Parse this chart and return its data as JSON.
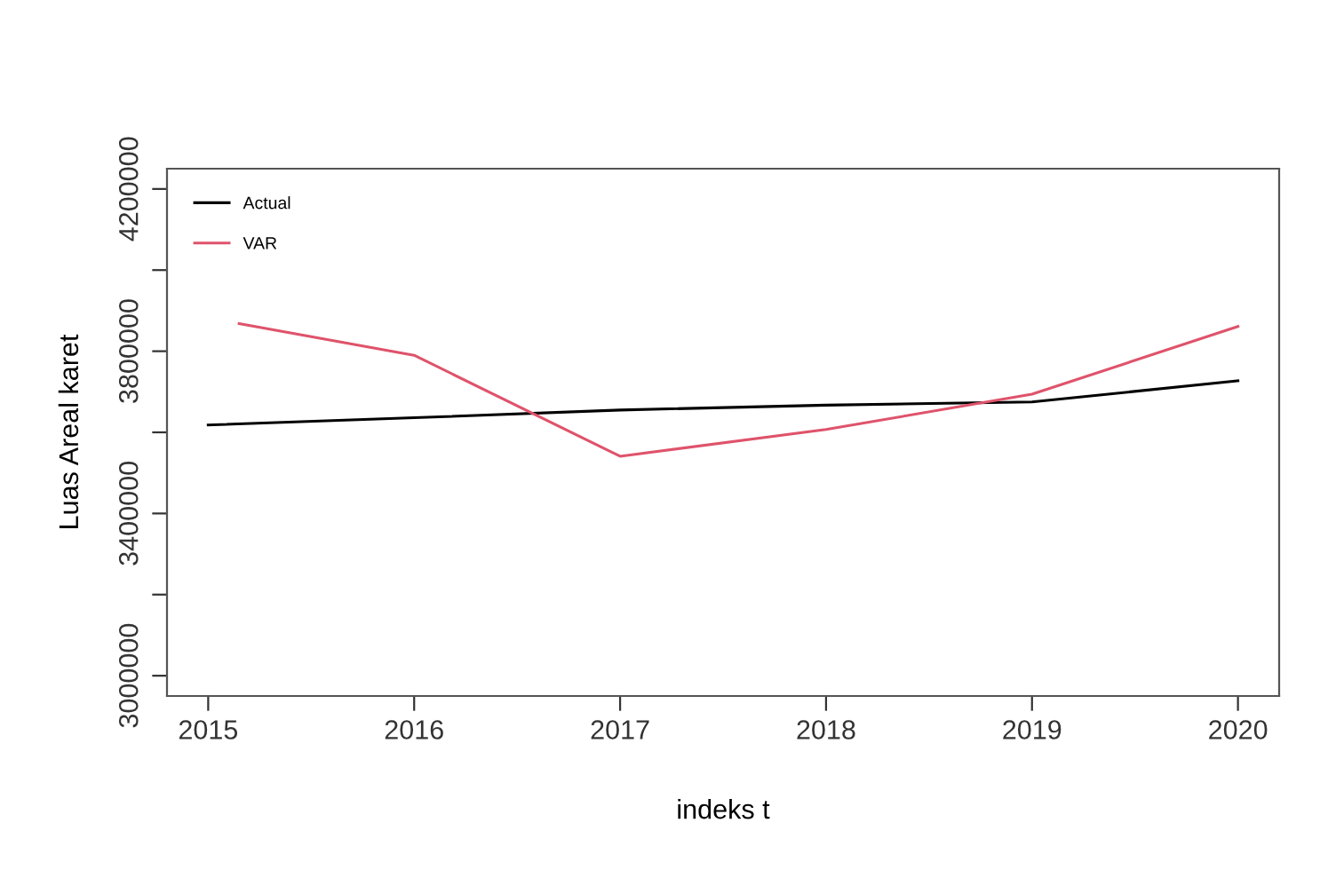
{
  "chart_data": {
    "type": "line",
    "xlabel": "indeks t",
    "ylabel": "Luas Areal karet",
    "xlim": [
      2014.8,
      2020.2
    ],
    "xticks": [
      2015,
      2016,
      2017,
      2018,
      2019,
      2020
    ],
    "ylim": [
      2950000,
      4250000
    ],
    "yticks": [
      3000000,
      {
        "value": 3200000,
        "label": null
      },
      3400000,
      {
        "value": 3600000,
        "label": null
      },
      3800000,
      {
        "value": 4000000,
        "label": null
      },
      4200000
    ],
    "grid": false,
    "legend": "top left",
    "marker": "none",
    "line_style": "solid",
    "series": [
      {
        "name": "Actual",
        "color": "#000000",
        "x": [
          2015,
          2016,
          2017,
          2018,
          2019,
          2020
        ],
        "values": [
          3618000,
          3636000,
          3655000,
          3667000,
          3675000,
          3727000
        ]
      },
      {
        "name": "VAR",
        "color": "#df536b",
        "x": [
          2015.15,
          2016,
          2017,
          2018,
          2019,
          2020
        ],
        "values": [
          3868000,
          3790000,
          3541000,
          3607000,
          3694000,
          3861000
        ]
      }
    ]
  }
}
